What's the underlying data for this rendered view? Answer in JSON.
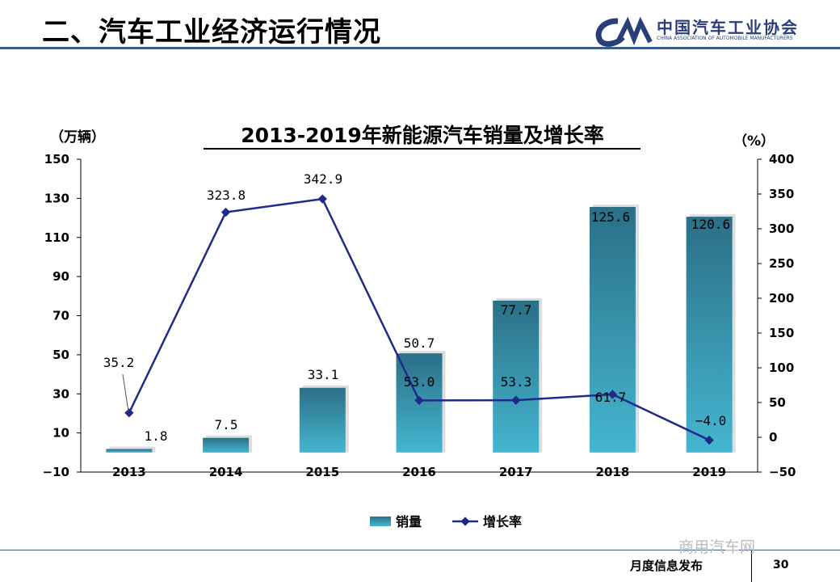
{
  "header": {
    "title": "二、汽车工业经济运行情况"
  },
  "logo": {
    "name_cn": "中国汽车工业协会",
    "name_en": "CHINA ASSOCIATION OF AUTOMOBILE MANUFACTURERS"
  },
  "chart_data": {
    "type": "bar",
    "title": "2013-2019年新能源汽车销量及增长率",
    "categories": [
      "2013",
      "2014",
      "2015",
      "2016",
      "2017",
      "2018",
      "2019"
    ],
    "series": [
      {
        "name": "销量",
        "type": "bar",
        "axis": "left",
        "color": "#3aa6be",
        "values": [
          1.8,
          7.5,
          33.1,
          50.7,
          77.7,
          125.6,
          120.6
        ],
        "labels": [
          "1.8",
          "7.5",
          "33.1",
          "50.7",
          "77.7",
          "125.6",
          "120.6"
        ]
      },
      {
        "name": "增长率",
        "type": "line",
        "axis": "right",
        "color": "#1f2a8a",
        "values": [
          35.2,
          323.8,
          342.9,
          53.0,
          53.3,
          61.7,
          -4.0
        ],
        "labels": [
          "35.2",
          "323.8",
          "342.9",
          "53.0",
          "53.3",
          "61.7",
          "−4.0"
        ]
      }
    ],
    "ylabel_left": "（万辆）",
    "ylabel_right": "（%）",
    "ylim_left": [
      -10,
      150
    ],
    "yticks_left": [
      -10,
      10,
      30,
      50,
      70,
      90,
      110,
      130,
      150
    ],
    "ytick_labels_left": [
      "−10",
      "10",
      "30",
      "50",
      "70",
      "90",
      "110",
      "130",
      "150"
    ],
    "ylim_right": [
      -50,
      400
    ],
    "yticks_right": [
      -50,
      0,
      50,
      100,
      150,
      200,
      250,
      300,
      350,
      400
    ],
    "ytick_labels_right": [
      "−50",
      "0",
      "50",
      "100",
      "150",
      "200",
      "250",
      "300",
      "350",
      "400"
    ],
    "grid": false,
    "legend": {
      "position": "bottom",
      "items": [
        "销量",
        "增长率"
      ]
    }
  },
  "footer": {
    "text": "月度信息发布",
    "page": "30",
    "watermark": "商用汽车网"
  }
}
